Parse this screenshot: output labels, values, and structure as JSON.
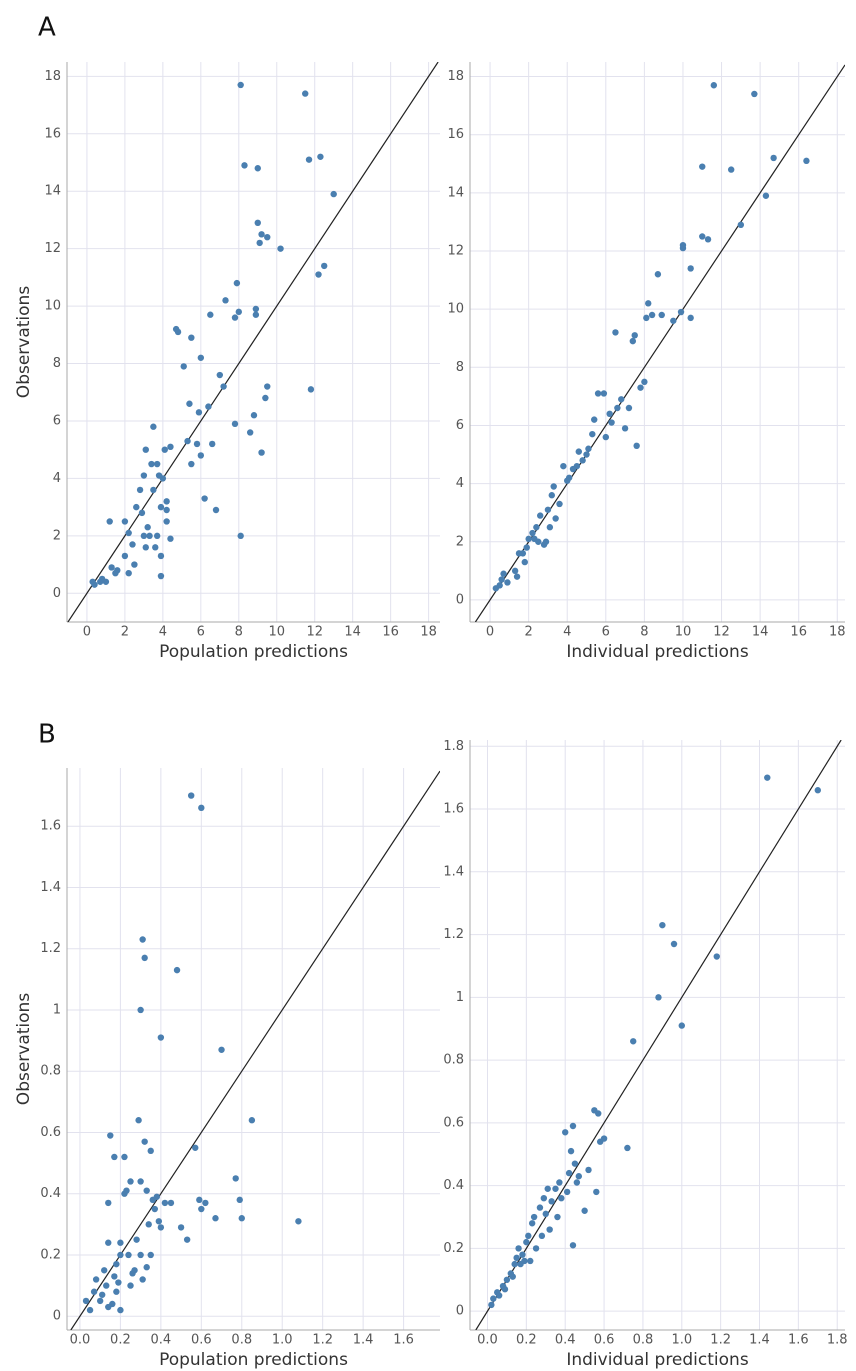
{
  "panel_labels": [
    "A",
    "B"
  ],
  "chart_data": [
    {
      "type": "scatter",
      "xlabel": "Population predictions",
      "ylabel": "Observations",
      "color": "#4a7fb0",
      "grid": true,
      "identity_line": true,
      "xlim": [
        -1.05,
        18.6
      ],
      "ylim": [
        -1,
        18.5
      ],
      "xticks": [
        0,
        2,
        4,
        6,
        8,
        10,
        12,
        14,
        16,
        18
      ],
      "yticks": [
        0,
        2,
        4,
        6,
        8,
        10,
        12,
        14,
        16,
        18
      ],
      "x": [
        0.3,
        0.7,
        1,
        0.8,
        1.2,
        1.3,
        1.5,
        1.6,
        2,
        2,
        2.2,
        2.4,
        2.5,
        2.6,
        2.8,
        2.9,
        3,
        3.1,
        3,
        3.1,
        3.2,
        3.3,
        3.4,
        3.5,
        3.5,
        3.6,
        3.7,
        3.7,
        3.8,
        3.9,
        3.9,
        4,
        3.9,
        4.1,
        4.2,
        4.2,
        4.4,
        4.4,
        4.2,
        4.7,
        4.8,
        5.1,
        5.3,
        5.5,
        5.4,
        5.5,
        5.8,
        5.9,
        6,
        6,
        6.2,
        6.4,
        6.5,
        6.6,
        6.8,
        7,
        7.2,
        7.3,
        7.8,
        7.8,
        8,
        7.9,
        8.1,
        8.1,
        8.3,
        8.6,
        8.8,
        8.9,
        8.9,
        9,
        9,
        9.1,
        9.2,
        9.2,
        9.4,
        9.5,
        9.5,
        10.2,
        11.5,
        11.7,
        11.8,
        12.2,
        12.3,
        12.5,
        13,
        2.2,
        0.4
      ],
      "values": [
        0.4,
        0.4,
        0.4,
        0.5,
        2.5,
        0.9,
        0.7,
        0.8,
        2.5,
        1.3,
        2.1,
        1.7,
        1,
        3,
        3.6,
        2.8,
        4.1,
        5,
        2,
        1.6,
        2.3,
        2,
        4.5,
        5.8,
        3.6,
        1.6,
        4.5,
        2,
        4.1,
        3,
        1.3,
        4,
        0.6,
        5,
        3.2,
        2.5,
        5.1,
        1.9,
        2.9,
        9.2,
        9.1,
        7.9,
        5.3,
        4.5,
        6.6,
        8.9,
        5.2,
        6.3,
        8.2,
        4.8,
        3.3,
        6.5,
        9.7,
        5.2,
        2.9,
        7.6,
        7.2,
        10.2,
        5.9,
        9.6,
        9.8,
        10.8,
        17.7,
        2,
        14.9,
        5.6,
        6.2,
        9.9,
        9.7,
        14.8,
        12.9,
        12.2,
        12.5,
        4.9,
        6.8,
        7.2,
        12.4,
        12,
        17.4,
        15.1,
        7.1,
        11.1,
        15.2,
        11.4,
        13.9,
        0.7,
        0.3
      ]
    },
    {
      "type": "scatter",
      "xlabel": "Individual predictions",
      "color": "#4a7fb0",
      "grid": true,
      "identity_line": true,
      "xlim": [
        -1.04,
        18.4
      ],
      "ylim": [
        -0.76,
        18.5
      ],
      "xticks": [
        0,
        2,
        4,
        6,
        8,
        10,
        12,
        14,
        16,
        18
      ],
      "yticks": [
        0,
        2,
        4,
        6,
        8,
        10,
        12,
        14,
        16,
        18
      ],
      "x": [
        0.3,
        0.5,
        0.6,
        0.7,
        0.9,
        1.3,
        1.4,
        1.5,
        1.7,
        1.8,
        1.9,
        2,
        2.2,
        2.3,
        2.4,
        2.5,
        2.6,
        2.8,
        2.9,
        3,
        3.1,
        3.2,
        3.3,
        3.4,
        3.6,
        3.8,
        4,
        4.1,
        4.3,
        4.5,
        4.6,
        4.8,
        5,
        5.1,
        5.3,
        5.4,
        5.6,
        5.9,
        6,
        6.2,
        6.3,
        6.5,
        6.6,
        6.8,
        7,
        7.2,
        7.4,
        7.5,
        7.6,
        7.8,
        8,
        8.1,
        8.2,
        8.4,
        8.7,
        8.9,
        9.5,
        9.9,
        10,
        10,
        10.4,
        10.4,
        11,
        11,
        11.3,
        11.6,
        12.5,
        13,
        13.7,
        14.3,
        14.7,
        16.4
      ],
      "values": [
        0.4,
        0.5,
        0.7,
        0.9,
        0.6,
        1,
        0.8,
        1.6,
        1.6,
        1.3,
        1.8,
        2.1,
        2.3,
        2.1,
        2.5,
        2,
        2.9,
        1.9,
        2,
        3.1,
        2.5,
        3.6,
        3.9,
        2.8,
        3.3,
        4.6,
        4.1,
        4.2,
        4.5,
        4.6,
        5.1,
        4.8,
        5,
        5.2,
        5.7,
        6.2,
        7.1,
        7.1,
        5.6,
        6.4,
        6.1,
        9.2,
        6.6,
        6.9,
        5.9,
        6.6,
        8.9,
        9.1,
        5.3,
        7.3,
        7.5,
        9.7,
        10.2,
        9.8,
        11.2,
        9.8,
        9.6,
        9.9,
        12.2,
        12.1,
        9.7,
        11.4,
        12.5,
        14.9,
        12.4,
        17.7,
        14.8,
        12.9,
        17.4,
        13.9,
        15.2,
        15.1
      ]
    },
    {
      "type": "scatter",
      "xlabel": "Population predictions",
      "ylabel": "Observations",
      "color": "#4a7fb0",
      "grid": true,
      "identity_line": true,
      "xlim": [
        -0.064,
        1.78
      ],
      "ylim": [
        -0.045,
        1.79
      ],
      "xticks": [
        {
          "value": 0,
          "label": "0.0"
        },
        0.2,
        0.4,
        0.6,
        0.8,
        {
          "value": 1,
          "label": "1.0"
        },
        1.2,
        1.4,
        1.6
      ],
      "yticks": [
        0,
        0.2,
        0.4,
        0.6,
        0.8,
        1,
        1.2,
        1.4,
        1.6
      ],
      "x": [
        0.03,
        0.05,
        0.07,
        0.08,
        0.1,
        0.11,
        0.12,
        0.13,
        0.14,
        0.14,
        0.14,
        0.15,
        0.16,
        0.17,
        0.17,
        0.18,
        0.18,
        0.19,
        0.2,
        0.2,
        0.2,
        0.22,
        0.22,
        0.23,
        0.24,
        0.25,
        0.25,
        0.26,
        0.27,
        0.28,
        0.29,
        0.3,
        0.3,
        0.3,
        0.31,
        0.31,
        0.32,
        0.32,
        0.33,
        0.33,
        0.34,
        0.35,
        0.35,
        0.36,
        0.37,
        0.38,
        0.39,
        0.4,
        0.4,
        0.42,
        0.45,
        0.48,
        0.5,
        0.53,
        0.55,
        0.57,
        0.59,
        0.6,
        0.6,
        0.62,
        0.67,
        0.7,
        0.77,
        0.79,
        0.8,
        0.85,
        1.08
      ],
      "values": [
        0.05,
        0.02,
        0.08,
        0.12,
        0.05,
        0.07,
        0.15,
        0.1,
        0.03,
        0.24,
        0.37,
        0.59,
        0.04,
        0.13,
        0.52,
        0.17,
        0.08,
        0.11,
        0.02,
        0.2,
        0.24,
        0.4,
        0.52,
        0.41,
        0.2,
        0.44,
        0.1,
        0.14,
        0.15,
        0.25,
        0.64,
        0.44,
        1,
        0.2,
        0.12,
        1.23,
        1.17,
        0.57,
        0.41,
        0.16,
        0.3,
        0.2,
        0.54,
        0.38,
        0.35,
        0.39,
        0.31,
        0.29,
        0.91,
        0.37,
        0.37,
        1.13,
        0.29,
        0.25,
        1.7,
        0.55,
        0.38,
        1.66,
        0.35,
        0.37,
        0.32,
        0.87,
        0.45,
        0.38,
        0.32,
        0.64,
        0.31
      ]
    },
    {
      "type": "scatter",
      "xlabel": "Individual predictions",
      "color": "#4a7fb0",
      "grid": true,
      "identity_line": true,
      "xlim": [
        -0.09,
        1.84
      ],
      "ylim": [
        -0.06,
        1.82
      ],
      "xticks": [
        {
          "value": 0,
          "label": "0.0"
        },
        0.2,
        0.4,
        0.6,
        0.8,
        {
          "value": 1,
          "label": "1.0"
        },
        1.2,
        1.4,
        1.6,
        1.8
      ],
      "yticks": [
        0,
        0.2,
        0.4,
        0.6,
        0.8,
        1,
        1.2,
        1.4,
        1.6,
        1.8
      ],
      "x": [
        0.02,
        0.03,
        0.05,
        0.06,
        0.08,
        0.09,
        0.1,
        0.12,
        0.13,
        0.14,
        0.15,
        0.16,
        0.17,
        0.18,
        0.19,
        0.2,
        0.21,
        0.22,
        0.23,
        0.24,
        0.25,
        0.27,
        0.28,
        0.29,
        0.3,
        0.31,
        0.32,
        0.33,
        0.35,
        0.36,
        0.37,
        0.38,
        0.4,
        0.41,
        0.42,
        0.43,
        0.44,
        0.44,
        0.45,
        0.46,
        0.47,
        0.5,
        0.52,
        0.55,
        0.57,
        0.58,
        0.56,
        0.6,
        0.72,
        0.75,
        0.88,
        0.9,
        0.96,
        1,
        1.18,
        1.44,
        1.7
      ],
      "values": [
        0.02,
        0.04,
        0.06,
        0.05,
        0.08,
        0.07,
        0.1,
        0.12,
        0.11,
        0.15,
        0.17,
        0.2,
        0.15,
        0.18,
        0.16,
        0.22,
        0.24,
        0.16,
        0.28,
        0.3,
        0.2,
        0.33,
        0.24,
        0.36,
        0.31,
        0.39,
        0.26,
        0.35,
        0.39,
        0.3,
        0.41,
        0.36,
        0.57,
        0.38,
        0.44,
        0.51,
        0.21,
        0.59,
        0.47,
        0.41,
        0.43,
        0.32,
        0.45,
        0.64,
        0.63,
        0.54,
        0.38,
        0.55,
        0.52,
        0.86,
        1,
        1.23,
        1.17,
        0.91,
        1.13,
        1.7,
        1.66
      ]
    }
  ]
}
